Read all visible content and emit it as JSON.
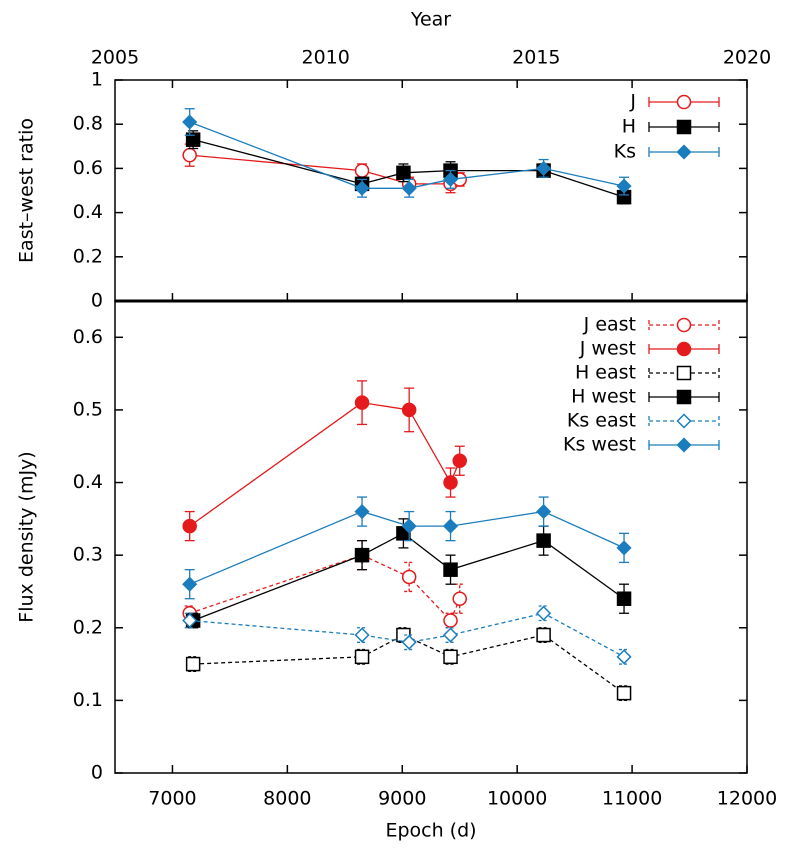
{
  "chart_data": [
    {
      "type": "line",
      "ylabel": "East–west ratio",
      "x2label": "Year",
      "xlim": [
        6500,
        12000
      ],
      "xticks": [
        7000,
        8000,
        9000,
        10000,
        11000,
        12000
      ],
      "x2lim": [
        2005,
        2020
      ],
      "x2ticks": [
        2005,
        2010,
        2015,
        2020
      ],
      "ylim": [
        0,
        1
      ],
      "yticks": [
        0,
        0.2,
        0.4,
        0.6,
        0.8,
        1
      ],
      "series": [
        {
          "name": "J",
          "color": "#e41a1c",
          "marker": "circle",
          "filled": false,
          "dashed": false,
          "x": [
            7150,
            8650,
            9060,
            9420,
            9500
          ],
          "values": [
            0.66,
            0.59,
            0.53,
            0.53,
            0.55
          ],
          "errors": [
            0.05,
            0.03,
            0.03,
            0.04,
            0.03
          ]
        },
        {
          "name": "H",
          "color": "#000000",
          "marker": "square",
          "filled": true,
          "dashed": false,
          "x": [
            7180,
            8650,
            9010,
            9420,
            10230,
            10930
          ],
          "values": [
            0.73,
            0.53,
            0.58,
            0.59,
            0.59,
            0.47
          ],
          "errors": [
            0.04,
            0.03,
            0.04,
            0.04,
            0.03,
            0.03
          ]
        },
        {
          "name": "Ks",
          "color": "#1b7dbd",
          "marker": "diamond",
          "filled": true,
          "dashed": false,
          "x": [
            7150,
            8650,
            9060,
            9420,
            10230,
            10930
          ],
          "values": [
            0.81,
            0.51,
            0.51,
            0.55,
            0.6,
            0.52
          ],
          "errors": [
            0.06,
            0.04,
            0.04,
            0.04,
            0.04,
            0.04
          ]
        }
      ]
    },
    {
      "type": "line",
      "ylabel": "Flux density (mJy)",
      "xlabel": "Epoch (d)",
      "xlim": [
        6500,
        12000
      ],
      "xticks": [
        7000,
        8000,
        9000,
        10000,
        11000,
        12000
      ],
      "ylim": [
        0,
        0.65
      ],
      "yticks": [
        0,
        0.1,
        0.2,
        0.3,
        0.4,
        0.5,
        0.6
      ],
      "series": [
        {
          "name": "J east",
          "color": "#e41a1c",
          "marker": "circle",
          "filled": false,
          "dashed": true,
          "x": [
            7150,
            8650,
            9060,
            9420,
            9500
          ],
          "values": [
            0.22,
            0.3,
            0.27,
            0.21,
            0.24
          ],
          "errors": [
            0.01,
            0.02,
            0.02,
            0.01,
            0.02
          ]
        },
        {
          "name": "J west",
          "color": "#e41a1c",
          "marker": "circle",
          "filled": true,
          "dashed": false,
          "x": [
            7150,
            8650,
            9060,
            9420,
            9500
          ],
          "values": [
            0.34,
            0.51,
            0.5,
            0.4,
            0.43
          ],
          "errors": [
            0.02,
            0.03,
            0.03,
            0.02,
            0.02
          ]
        },
        {
          "name": "H east",
          "color": "#000000",
          "marker": "square",
          "filled": false,
          "dashed": true,
          "x": [
            7180,
            8650,
            9010,
            9420,
            10230,
            10930
          ],
          "values": [
            0.15,
            0.16,
            0.19,
            0.16,
            0.19,
            0.11
          ],
          "errors": [
            0.01,
            0.01,
            0.01,
            0.01,
            0.01,
            0.01
          ]
        },
        {
          "name": "H west",
          "color": "#000000",
          "marker": "square",
          "filled": true,
          "dashed": false,
          "x": [
            7180,
            8650,
            9010,
            9420,
            10230,
            10930
          ],
          "values": [
            0.21,
            0.3,
            0.33,
            0.28,
            0.32,
            0.24
          ],
          "errors": [
            0.01,
            0.02,
            0.02,
            0.02,
            0.02,
            0.02
          ]
        },
        {
          "name": "Ks east",
          "color": "#1b7dbd",
          "marker": "diamond",
          "filled": false,
          "dashed": true,
          "x": [
            7150,
            8650,
            9060,
            9420,
            10230,
            10930
          ],
          "values": [
            0.21,
            0.19,
            0.18,
            0.19,
            0.22,
            0.16
          ],
          "errors": [
            0.01,
            0.01,
            0.01,
            0.01,
            0.01,
            0.01
          ]
        },
        {
          "name": "Ks west",
          "color": "#1b7dbd",
          "marker": "diamond",
          "filled": true,
          "dashed": false,
          "x": [
            7150,
            8650,
            9060,
            9420,
            10230,
            10930
          ],
          "values": [
            0.26,
            0.36,
            0.34,
            0.34,
            0.36,
            0.31
          ],
          "errors": [
            0.02,
            0.02,
            0.02,
            0.02,
            0.02,
            0.02
          ]
        }
      ]
    }
  ]
}
